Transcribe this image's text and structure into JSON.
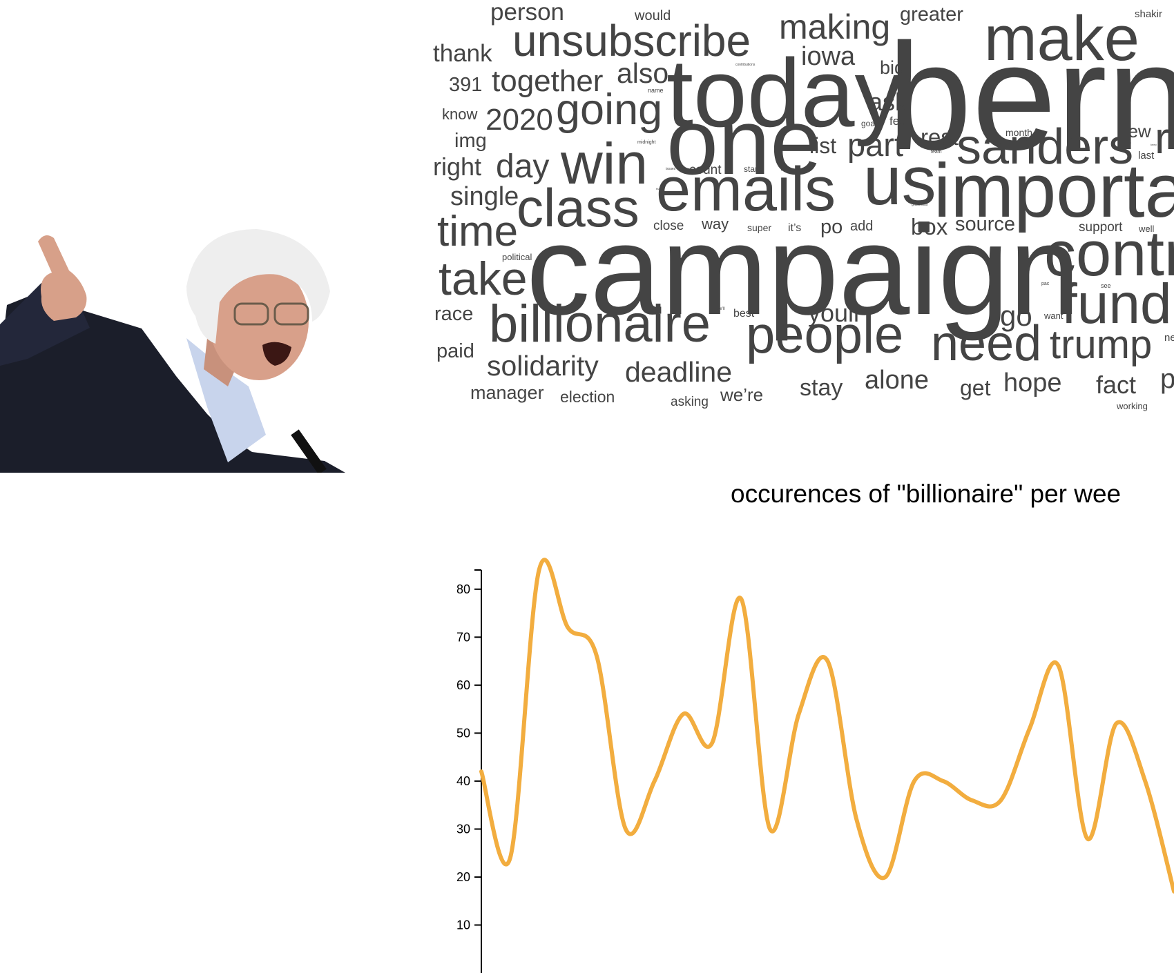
{
  "wordcloud": {
    "words": [
      {
        "text": "bernie"
      },
      {
        "text": "campaign"
      },
      {
        "text": "today"
      },
      {
        "text": "one"
      },
      {
        "text": "make"
      },
      {
        "text": "us"
      },
      {
        "text": "important"
      },
      {
        "text": "emails"
      },
      {
        "text": "class"
      },
      {
        "text": "billionaire"
      },
      {
        "text": "people"
      },
      {
        "text": "need"
      },
      {
        "text": "sanders"
      },
      {
        "text": "contribute"
      },
      {
        "text": "fund"
      },
      {
        "text": "trump"
      },
      {
        "text": "unsubscribe"
      },
      {
        "text": "win"
      },
      {
        "text": "going"
      },
      {
        "text": "take"
      },
      {
        "text": "time"
      },
      {
        "text": "making"
      },
      {
        "text": "together"
      },
      {
        "text": "day"
      },
      {
        "text": "part"
      },
      {
        "text": "solidarity"
      },
      {
        "text": "deadline"
      },
      {
        "text": "2020"
      },
      {
        "text": "also"
      },
      {
        "text": "iowa"
      },
      {
        "text": "person"
      },
      {
        "text": "thank"
      },
      {
        "text": "single"
      },
      {
        "text": "right"
      },
      {
        "text": "alone"
      },
      {
        "text": "hope"
      },
      {
        "text": "youll"
      },
      {
        "text": "go"
      },
      {
        "text": "ask"
      },
      {
        "text": "greater"
      },
      {
        "text": "fact"
      },
      {
        "text": "stay"
      },
      {
        "text": "rest"
      },
      {
        "text": "list"
      },
      {
        "text": "source"
      },
      {
        "text": "box"
      },
      {
        "text": "get"
      },
      {
        "text": "race"
      },
      {
        "text": "paid"
      },
      {
        "text": "manager"
      },
      {
        "text": "img"
      },
      {
        "text": "391"
      },
      {
        "text": "know"
      },
      {
        "text": "new"
      },
      {
        "text": "po"
      },
      {
        "text": "we’re"
      },
      {
        "text": "big"
      },
      {
        "text": "way"
      },
      {
        "text": "election"
      },
      {
        "text": "count"
      },
      {
        "text": "close"
      },
      {
        "text": "add"
      },
      {
        "text": "support"
      },
      {
        "text": "would"
      },
      {
        "text": "asking"
      },
      {
        "text": "best"
      },
      {
        "text": "shakir"
      },
      {
        "text": "last"
      },
      {
        "text": "super"
      },
      {
        "text": "it’s"
      },
      {
        "text": "fec"
      },
      {
        "text": "3"
      },
      {
        "text": "month"
      },
      {
        "text": "working"
      },
      {
        "text": "want"
      },
      {
        "text": "well"
      },
      {
        "text": "political"
      },
      {
        "text": "goal"
      },
      {
        "text": "stand"
      },
      {
        "text": "name"
      },
      {
        "text": "midnight"
      },
      {
        "text": "contributions"
      },
      {
        "text": "states"
      },
      {
        "text": "team"
      },
      {
        "text": "see"
      },
      {
        "text": "pac"
      },
      {
        "text": "we’ll"
      },
      {
        "text": "issues"
      },
      {
        "text": "grassroots"
      },
      {
        "text": "thanks"
      },
      {
        "text": "keep"
      },
      {
        "text": "r"
      },
      {
        "text": "p"
      },
      {
        "text": "ne"
      }
    ]
  },
  "chart": {
    "title": "occurences of \"billionaire\" per wee",
    "line_color": "#f2ad3f"
  },
  "chart_data": {
    "type": "line",
    "title": "occurences of \"billionaire\" per wee",
    "xlabel": "",
    "ylabel": "",
    "ylim": [
      0,
      84
    ],
    "yticks": [
      "10",
      "20",
      "30",
      "40",
      "50",
      "60",
      "70",
      "80"
    ],
    "grid": false,
    "series": [
      {
        "values": [
          42,
          24,
          84,
          72,
          66,
          30,
          40,
          54,
          48,
          78,
          30,
          54,
          65,
          32,
          20,
          40,
          40,
          36,
          36,
          51,
          64,
          28,
          52,
          40,
          17
        ]
      }
    ]
  }
}
